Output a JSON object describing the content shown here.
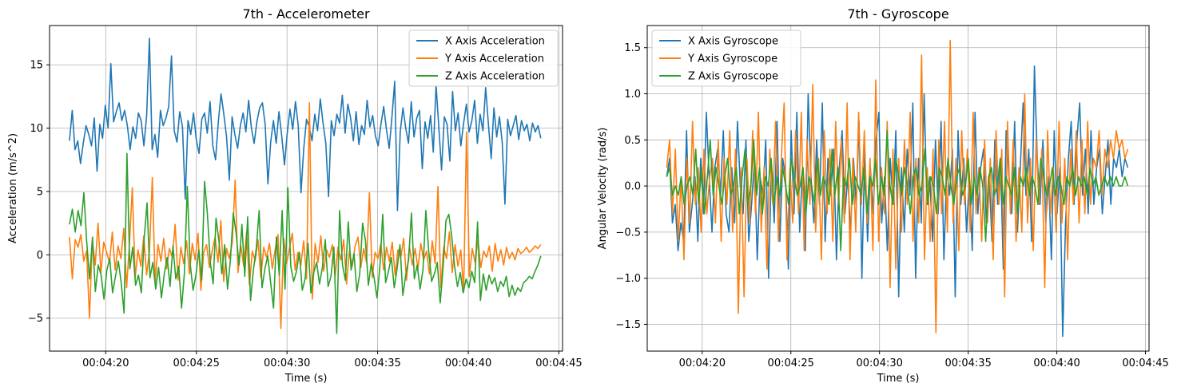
{
  "chart_data": [
    {
      "type": "line",
      "title": "7th - Accelerometer",
      "xlabel": "Time (s)",
      "ylabel": "Acceleration (m/s^2)",
      "xlim": [
        "00:04:16.9",
        "00:04:45.2"
      ],
      "ylim": [
        -7.6,
        18.1
      ],
      "x_ticks": [
        "00:04:20",
        "00:04:25",
        "00:04:30",
        "00:04:35",
        "00:04:40",
        "00:04:45"
      ],
      "y_ticks": [
        -5,
        0,
        5,
        10,
        15
      ],
      "grid": true,
      "legend_position": "upper right",
      "x_range": [
        "00:04:18",
        "00:04:44"
      ],
      "series": [
        {
          "name": "X Axis Acceleration",
          "color": "#1f77b4",
          "values": [
            9.0,
            11.4,
            8.3,
            9.0,
            7.2,
            8.8,
            10.2,
            9.5,
            8.6,
            10.8,
            6.6,
            10.3,
            9.2,
            11.8,
            10.0,
            15.1,
            10.5,
            11.3,
            12.0,
            10.6,
            11.4,
            10.2,
            8.3,
            10.1,
            9.2,
            11.2,
            10.6,
            8.6,
            11.0,
            17.1,
            8.3,
            9.5,
            7.7,
            11.4,
            10.2,
            10.8,
            11.7,
            15.7,
            9.8,
            8.9,
            11.3,
            10.1,
            4.4,
            10.6,
            9.5,
            11.2,
            9.1,
            8.0,
            10.7,
            11.2,
            9.6,
            12.1,
            8.6,
            7.5,
            10.5,
            12.7,
            11.1,
            9.3,
            5.9,
            10.9,
            9.5,
            8.4,
            10.2,
            11.2,
            9.7,
            12.2,
            10.0,
            8.8,
            10.5,
            11.6,
            12.0,
            10.3,
            5.6,
            8.9,
            10.6,
            8.8,
            11.3,
            9.4,
            7.1,
            9.6,
            11.5,
            9.9,
            12.1,
            10.2,
            4.9,
            8.4,
            10.7,
            10.1,
            9.0,
            11.1,
            9.8,
            12.3,
            10.4,
            8.8,
            4.6,
            10.6,
            9.4,
            11.1,
            10.4,
            12.6,
            9.6,
            11.9,
            10.8,
            9.0,
            11.3,
            8.7,
            10.2,
            9.5,
            12.2,
            10.1,
            11.0,
            9.4,
            8.6,
            10.3,
            11.7,
            9.9,
            8.4,
            10.9,
            13.7,
            3.5,
            9.7,
            11.6,
            10.0,
            8.8,
            12.1,
            9.3,
            10.8,
            11.4,
            6.8,
            10.5,
            9.2,
            11.0,
            8.1,
            13.4,
            10.1,
            6.7,
            10.9,
            10.3,
            7.4,
            12.9,
            9.8,
            11.2,
            8.6,
            10.4,
            11.9,
            9.7,
            10.6,
            12.2,
            8.8,
            11.1,
            9.8,
            13.2,
            10.3,
            7.6,
            11.6,
            9.3,
            10.9,
            8.9,
            4.0,
            10.7,
            9.4,
            10.2,
            11.0,
            9.1,
            10.6,
            9.8,
            10.3,
            9.0,
            10.4,
            9.7,
            10.2,
            9.2
          ]
        },
        {
          "name": "Y Axis Acceleration",
          "color": "#ff7f0e",
          "values": [
            1.4,
            -1.9,
            1.2,
            0.6,
            1.6,
            -0.5,
            0.3,
            -5.0,
            1.1,
            -0.8,
            2.5,
            -1.4,
            1.0,
            0.2,
            -0.6,
            1.8,
            -1.2,
            0.7,
            -0.3,
            2.1,
            -2.6,
            0.9,
            5.3,
            -1.8,
            0.4,
            -0.9,
            1.5,
            -1.6,
            0.3,
            6.1,
            -2.2,
            0.8,
            -0.5,
            1.3,
            -1.1,
            0.5,
            -0.2,
            2.4,
            -2.0,
            0.6,
            -0.7,
            1.1,
            -1.5,
            0.9,
            -0.4,
            1.7,
            -2.8,
            0.2,
            0.8,
            -1.0,
            0.4,
            1.4,
            -0.6,
            2.7,
            -2.1,
            0.5,
            -0.3,
            1.0,
            5.9,
            -1.4,
            0.7,
            -0.9,
            1.8,
            -2.4,
            0.3,
            -0.5,
            1.2,
            -1.8,
            0.6,
            -0.2,
            0.9,
            -1.1,
            0.4,
            1.6,
            -5.8,
            1.3,
            -0.7,
            0.5,
            1.7,
            -1.2,
            0.2,
            -0.8,
            1.1,
            -1.9,
            12.0,
            -3.5,
            0.9,
            -0.6,
            1.5,
            -1.3,
            0.4,
            -0.2,
            0.8,
            -1.7,
            0.6,
            -0.4,
            1.2,
            -2.3,
            0.3,
            -0.9,
            0.7,
            1.4,
            -1.0,
            0.5,
            -0.6,
            4.9,
            -1.8,
            0.2,
            -0.3,
            0.9,
            -1.2,
            0.6,
            -0.5,
            1.0,
            -1.6,
            0.4,
            -0.2,
            1.3,
            -2.0,
            0.7,
            -0.8,
            0.5,
            -1.1,
            0.9,
            -0.4,
            0.3,
            -1.5,
            1.1,
            -0.7,
            5.4,
            -2.6,
            0.6,
            -0.3,
            1.8,
            -1.4,
            0.8,
            -0.9,
            0.4,
            -2.9,
            9.7,
            -1.7,
            0.5,
            -0.6,
            1.2,
            -1.0,
            0.3,
            -0.2,
            0.7,
            -1.3,
            0.9,
            -0.5,
            0.4,
            -0.8,
            0.6,
            -0.3,
            0.2,
            -0.4,
            0.5,
            0.1,
            0.3,
            0.6,
            0.2,
            0.4,
            0.7,
            0.5,
            0.8
          ]
        },
        {
          "name": "Z Axis Acceleration",
          "color": "#2ca02c",
          "values": [
            2.4,
            3.6,
            1.8,
            3.5,
            2.3,
            4.9,
            1.0,
            -1.9,
            1.4,
            -2.9,
            -0.8,
            -1.6,
            -3.5,
            -1.2,
            -0.3,
            -3.0,
            -1.7,
            -0.5,
            -2.2,
            -4.6,
            8.0,
            -1.1,
            0.6,
            -2.4,
            -1.6,
            -3.0,
            1.3,
            4.1,
            -1.8,
            -0.6,
            -2.7,
            -1.0,
            -3.4,
            -1.5,
            -0.2,
            -2.5,
            0.7,
            -1.9,
            -0.9,
            -4.2,
            -1.4,
            5.4,
            -0.7,
            -2.8,
            -1.6,
            0.4,
            -2.0,
            5.8,
            3.2,
            -0.6,
            -2.3,
            2.9,
            1.1,
            -1.5,
            0.8,
            -2.7,
            -0.4,
            3.3,
            1.7,
            -0.8,
            2.4,
            -1.7,
            3.0,
            -3.6,
            -1.2,
            0.5,
            3.5,
            -2.6,
            -1.1,
            -0.1,
            -2.2,
            -4.2,
            1.4,
            -1.6,
            3.5,
            -2.7,
            5.3,
            -0.9,
            -2.1,
            -1.3,
            0.2,
            -2.8,
            -1.9,
            0.9,
            -3.0,
            -1.4,
            -0.6,
            -2.3,
            -1.0,
            1.2,
            -2.5,
            -1.7,
            0.6,
            -6.2,
            3.5,
            -0.8,
            -2.0,
            2.6,
            -1.2,
            0.1,
            -2.9,
            -1.5,
            2.5,
            1.1,
            -2.4,
            -0.7,
            -1.8,
            -3.4,
            -1.0,
            3.2,
            -2.2,
            -1.3,
            -0.2,
            -2.6,
            -1.1,
            0.8,
            -3.2,
            -1.6,
            -0.4,
            3.3,
            -1.9,
            -0.8,
            -2.7,
            -1.2,
            3.5,
            0.3,
            -2.1,
            -1.5,
            -0.6,
            -3.8,
            -1.0,
            2.7,
            3.2,
            1.5,
            -0.9,
            -2.5,
            -1.4,
            -3.0,
            -1.9,
            -2.6,
            -1.3,
            -2.2,
            2.6,
            -3.6,
            -1.5,
            -2.8,
            -1.6,
            -2.3,
            -1.8,
            -2.9,
            -2.1,
            -2.5,
            -1.7,
            -3.3,
            -2.4,
            -3.2,
            -2.6,
            -2.9,
            -2.2,
            -2.0,
            -1.7,
            -1.9,
            -1.3,
            -0.8,
            -0.1
          ]
        }
      ]
    },
    {
      "type": "line",
      "title": "7th - Gyroscope",
      "xlabel": "Time (s)",
      "ylabel": "Angular Velocity (rad/s)",
      "xlim": [
        "00:04:16.9",
        "00:04:45.2"
      ],
      "ylim": [
        -1.79,
        1.74
      ],
      "x_ticks": [
        "00:04:20",
        "00:04:25",
        "00:04:30",
        "00:04:35",
        "00:04:40",
        "00:04:45"
      ],
      "y_ticks": [
        -1.5,
        -1.0,
        -0.5,
        0.0,
        0.5,
        1.0,
        1.5
      ],
      "y_tick_labels": [
        "−1.5",
        "−1.0",
        "−0.5",
        "0.0",
        "0.5",
        "1.0",
        "1.5"
      ],
      "grid": true,
      "legend_position": "upper left",
      "x_range": [
        "00:04:18",
        "00:04:44"
      ],
      "series": [
        {
          "name": "X Axis Gyroscope",
          "color": "#1f77b4",
          "values": [
            0.1,
            0.3,
            -0.4,
            -0.2,
            -0.7,
            -0.4,
            -0.6,
            0.6,
            -0.5,
            -0.2,
            0.1,
            -0.6,
            0.3,
            -0.3,
            0.8,
            0.1,
            -0.5,
            0.2,
            0.4,
            -0.1,
            0.6,
            -0.3,
            -0.5,
            0.2,
            -0.4,
            0.7,
            0.0,
            -0.3,
            0.5,
            -0.6,
            -0.2,
            0.3,
            -0.8,
            0.1,
            -0.1,
            0.5,
            -1.0,
            0.2,
            -0.4,
            0.7,
            -0.6,
            0.3,
            0.1,
            -0.9,
            0.6,
            -0.3,
            0.8,
            -0.5,
            0.2,
            -0.7,
            1.0,
            0.1,
            -0.4,
            0.5,
            -0.2,
            0.9,
            -0.6,
            0.3,
            -0.1,
            0.4,
            -0.8,
            0.2,
            0.6,
            -0.3,
            0.1,
            -0.5,
            0.3,
            -0.2,
            0.7,
            -1.0,
            0.4,
            -0.6,
            0.2,
            -0.3,
            0.5,
            0.8,
            -0.4,
            0.1,
            -0.7,
            0.3,
            -0.2,
            0.6,
            -1.2,
            0.2,
            -0.5,
            0.4,
            -0.1,
            0.9,
            -1.0,
            0.3,
            -0.4,
            1.0,
            -0.2,
            0.1,
            -0.6,
            0.5,
            -0.3,
            0.7,
            -0.8,
            0.2,
            -0.1,
            0.4,
            -1.2,
            0.6,
            -0.2,
            0.3,
            -0.5,
            0.1,
            -0.7,
            0.8,
            -0.3,
            0.2,
            0.4,
            -0.4,
            0.1,
            -0.6,
            0.5,
            -0.2,
            0.3,
            -0.9,
            0.6,
            0.1,
            -0.3,
            0.7,
            -0.5,
            0.2,
            0.9,
            -0.1,
            0.4,
            -0.6,
            1.3,
            0.3,
            -0.2,
            0.5,
            -0.4,
            0.1,
            -0.8,
            0.6,
            -0.3,
            0.2,
            -1.63,
            -0.4,
            0.3,
            0.7,
            -0.2,
            0.5,
            0.9,
            -0.1,
            0.4,
            -0.3,
            0.6,
            -0.2,
            0.2,
            0.4,
            -0.3,
            0.1,
            0.5,
            -0.2,
            0.3,
            0.2,
            0.4,
            0.1,
            0.3,
            0.2
          ]
        },
        {
          "name": "Y Axis Gyroscope",
          "color": "#ff7f0e",
          "values": [
            0.2,
            0.5,
            -0.3,
            0.4,
            -0.6,
            0.1,
            -0.8,
            0.3,
            -0.4,
            0.7,
            -0.2,
            0.2,
            -0.5,
            0.4,
            -0.3,
            0.1,
            0.3,
            -0.4,
            0.5,
            -0.6,
            0.3,
            -0.2,
            0.6,
            -0.5,
            0.4,
            -1.38,
            0.2,
            -1.2,
            0.3,
            -0.4,
            0.6,
            -0.3,
            0.8,
            -0.5,
            0.2,
            -0.9,
            0.4,
            -0.2,
            0.7,
            -0.6,
            0.3,
            0.9,
            -0.8,
            0.2,
            -0.4,
            0.6,
            -0.3,
            0.8,
            -0.7,
            0.5,
            -0.2,
            1.1,
            -0.5,
            0.3,
            -0.8,
            0.6,
            -0.3,
            0.4,
            -0.6,
            0.7,
            -0.2,
            0.5,
            -0.4,
            0.9,
            -0.8,
            0.3,
            -0.5,
            0.8,
            -0.2,
            0.6,
            -0.4,
            0.3,
            -0.7,
            1.15,
            -0.6,
            0.2,
            -0.3,
            0.7,
            -1.1,
            0.4,
            -0.9,
            0.3,
            -0.5,
            0.5,
            -0.2,
            0.8,
            -0.6,
            0.3,
            -0.4,
            1.42,
            -0.8,
            0.2,
            -0.6,
            0.4,
            -1.59,
            0.5,
            -0.3,
            0.7,
            -0.5,
            1.58,
            -0.4,
            0.3,
            -0.7,
            0.6,
            -0.2,
            0.4,
            -0.5,
            0.8,
            -0.3,
            0.2,
            -0.6,
            0.5,
            -0.4,
            0.3,
            -0.8,
            0.6,
            -0.2,
            0.4,
            -1.2,
            0.7,
            -0.3,
            0.5,
            -0.6,
            0.2,
            -0.5,
            1.0,
            -0.4,
            0.3,
            -0.7,
            0.5,
            -0.2,
            0.4,
            -1.1,
            0.6,
            -0.3,
            0.2,
            -0.5,
            0.7,
            -0.4,
            0.3,
            -0.8,
            0.4,
            -0.2,
            0.6,
            -0.4,
            0.5,
            -0.3,
            0.7,
            -0.2,
            0.3,
            0.2,
            0.6,
            -0.1,
            0.4,
            0.2,
            0.5,
            0.3,
            0.6,
            0.4,
            0.5,
            0.3,
            0.4
          ]
        },
        {
          "name": "Z Axis Gyroscope",
          "color": "#2ca02c",
          "values": [
            0.1,
            0.2,
            -0.1,
            0.0,
            -0.1,
            0.1,
            -0.2,
            0.0,
            0.1,
            -0.1,
            0.4,
            -0.2,
            0.2,
            -0.3,
            0.1,
            0.5,
            -0.1,
            0.2,
            0.0,
            -0.2,
            0.1,
            0.3,
            -0.1,
            0.0,
            0.2,
            -0.3,
            0.1,
            0.4,
            -0.2,
            0.0,
            0.5,
            -0.1,
            0.2,
            -0.3,
            0.1,
            0.0,
            0.3,
            -0.2,
            0.1,
            -0.1,
            0.2,
            0.0,
            -0.2,
            0.3,
            0.1,
            -0.1,
            0.0,
            0.2,
            -0.3,
            0.1,
            0.0,
            -0.2,
            0.3,
            -0.1,
            0.1,
            0.0,
            -0.2,
            0.4,
            -0.1,
            0.2,
            -0.7,
            0.1,
            0.0,
            0.3,
            -0.2,
            0.1,
            0.0,
            -0.1,
            0.2,
            -0.3,
            0.1,
            0.0,
            0.3,
            -0.2,
            0.1,
            -0.1,
            0.6,
            0.0,
            -0.2,
            0.3,
            0.1,
            -0.1,
            0.2,
            0.0,
            -0.3,
            0.1,
            0.2,
            -0.1,
            0.0,
            0.4,
            -0.2,
            0.1,
            0.0,
            -0.3,
            0.2,
            0.1,
            -0.1,
            0.3,
            0.0,
            -0.2,
            0.1,
            0.2,
            -0.1,
            0.0,
            0.3,
            -0.2,
            0.1,
            -0.1,
            0.2,
            0.0,
            -0.6,
            0.1,
            0.2,
            -0.1,
            0.0,
            0.3,
            -0.2,
            0.1,
            0.0,
            -0.1,
            0.2,
            -0.3,
            0.1,
            0.0,
            0.2,
            -0.1,
            0.1,
            0.0,
            -0.2,
            0.3,
            0.1,
            -0.1,
            0.0,
            0.2,
            -0.1,
            0.1,
            0.0,
            -0.2,
            0.1,
            0.0,
            0.2,
            -0.1,
            0.1,
            0.0,
            0.1,
            -0.1,
            0.2,
            0.0,
            0.1,
            -0.1,
            0.0,
            0.1,
            0.0,
            0.1,
            0.0,
            0.1,
            0.0,
            0.0,
            0.1,
            0.0
          ]
        }
      ]
    }
  ]
}
